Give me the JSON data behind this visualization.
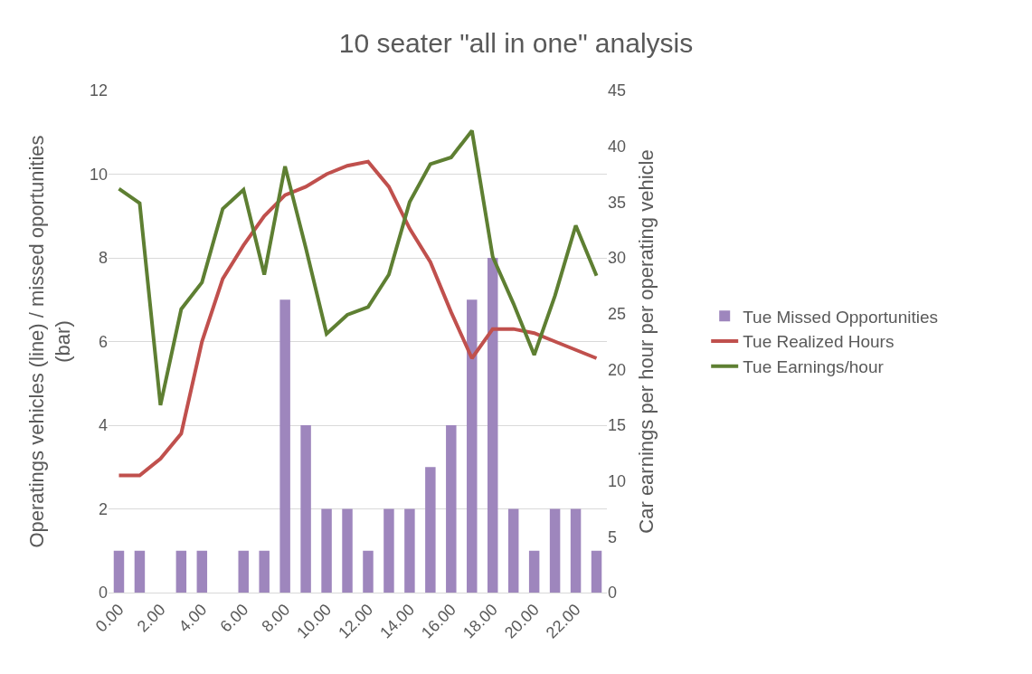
{
  "chart_data": {
    "type": "bar",
    "title": "10 seater \"all in one\" analysis",
    "ylabel": "Operatings vehicles (line) / missed oportunities (bar)",
    "y2label": "Car earnings per hour per operating vehicle",
    "categories": [
      "0.00",
      null,
      "2.00",
      null,
      "4.00",
      null,
      "6.00",
      null,
      "8.00",
      null,
      "10.00",
      null,
      "12.00",
      null,
      "14.00",
      null,
      "16.00",
      null,
      "18.00",
      null,
      "20.00",
      null,
      "22.00",
      null
    ],
    "series": [
      {
        "name": "Tue Missed Opportunities",
        "color": "#9e86bd",
        "values": [
          1,
          1,
          0,
          1,
          1,
          0,
          1,
          1,
          7,
          4,
          2,
          2,
          1,
          2,
          2,
          3,
          4,
          7,
          8,
          2,
          1,
          2,
          2,
          1
        ]
      },
      {
        "name": "Tue Realized Hours",
        "type": "line",
        "color": "#c0504d",
        "values": [
          2.8,
          2.8,
          3.2,
          3.8,
          6.0,
          7.5,
          8.3,
          9.0,
          9.5,
          9.7,
          10.0,
          10.2,
          10.3,
          9.7,
          8.7,
          7.9,
          6.7,
          5.6,
          6.3,
          6.3,
          6.2,
          6.0,
          5.8,
          5.6
        ]
      },
      {
        "name": "Tue Earnings/hour",
        "type": "line",
        "axis": "y2",
        "color": "#5e7f32",
        "values": [
          36.2,
          34.9,
          16.8,
          25.4,
          27.8,
          34.4,
          36.1,
          28.5,
          38.2,
          30.9,
          23.2,
          24.9,
          25.6,
          28.5,
          35.0,
          38.4,
          39.0,
          41.4,
          30.1,
          25.9,
          21.3,
          26.6,
          32.9,
          28.4
        ]
      }
    ],
    "ylim": [
      0,
      12
    ],
    "yticks": [
      0,
      2,
      4,
      6,
      8,
      10,
      12
    ],
    "y2lim": [
      0,
      45
    ],
    "y2ticks": [
      0,
      5,
      10,
      15,
      20,
      25,
      30,
      35,
      40,
      45
    ],
    "grid": "y",
    "legend": "right",
    "marker": "none",
    "line_style": "solid"
  }
}
